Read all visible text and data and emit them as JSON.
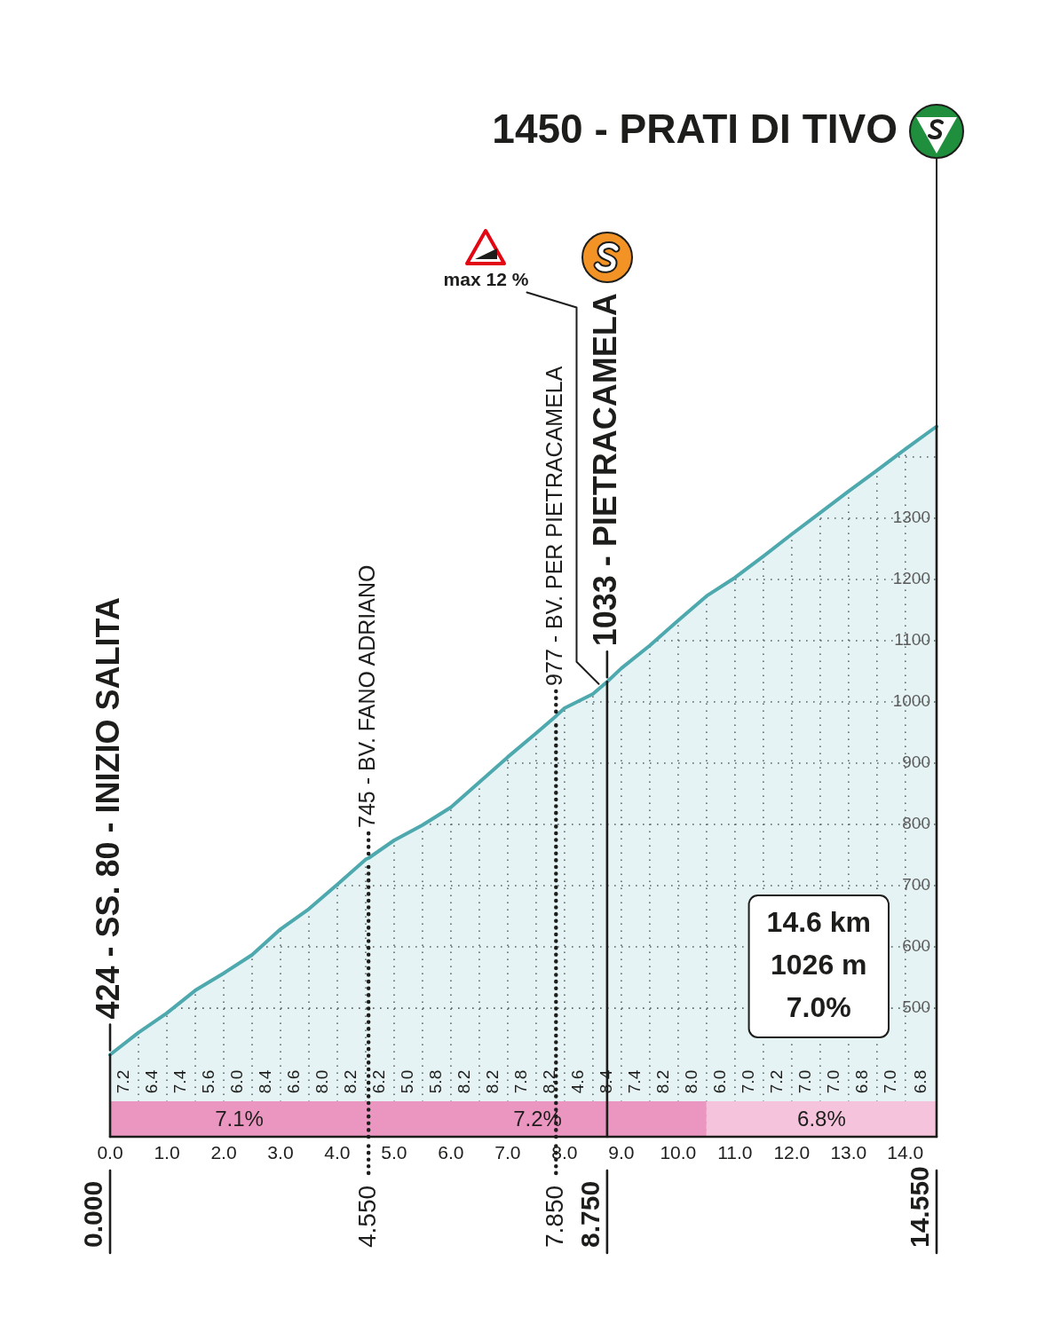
{
  "chart_data": {
    "type": "area",
    "title": "1450 - PRATI DI TIVO",
    "x": [
      0,
      0.5,
      1,
      1.5,
      2,
      2.5,
      3,
      3.5,
      4,
      4.5,
      4.55,
      5,
      5.5,
      6,
      6.5,
      7,
      7.5,
      7.85,
      8,
      8.5,
      8.75,
      9,
      9.5,
      10,
      10.5,
      11,
      11.5,
      12,
      12.5,
      13,
      13.5,
      14,
      14.55
    ],
    "series": [
      {
        "color": "#4da9ae",
        "values": [
          424,
          460,
          492,
          529,
          557,
          587,
          629,
          662,
          702,
          743,
          745,
          774,
          799,
          828,
          869,
          910,
          949,
          977,
          990,
          1013,
          1033,
          1055,
          1092,
          1133,
          1173,
          1203,
          1238,
          1274,
          1309,
          1344,
          1378,
          1413,
          1450
        ]
      }
    ],
    "xlim": [
      0,
      14.55
    ],
    "xticks": [
      {
        "value": 0,
        "label": "0.0"
      },
      {
        "value": 0.5,
        "label": null
      },
      {
        "value": 1,
        "label": "1.0"
      },
      {
        "value": 1.5,
        "label": null
      },
      {
        "value": 2,
        "label": "2.0"
      },
      {
        "value": 2.5,
        "label": null
      },
      {
        "value": 3,
        "label": "3.0"
      },
      {
        "value": 3.5,
        "label": null
      },
      {
        "value": 4,
        "label": "4.0"
      },
      {
        "value": 4.5,
        "label": null
      },
      {
        "value": 5,
        "label": "5.0"
      },
      {
        "value": 5.5,
        "label": null
      },
      {
        "value": 6,
        "label": "6.0"
      },
      {
        "value": 6.5,
        "label": null
      },
      {
        "value": 7,
        "label": "7.0"
      },
      {
        "value": 7.5,
        "label": null
      },
      {
        "value": 8,
        "label": "8.0"
      },
      {
        "value": 8.5,
        "label": null
      },
      {
        "value": 9,
        "label": "9.0"
      },
      {
        "value": 9.5,
        "label": null
      },
      {
        "value": 10,
        "label": "10.0"
      },
      {
        "value": 10.5,
        "label": null
      },
      {
        "value": 11,
        "label": "11.0"
      },
      {
        "value": 11.5,
        "label": null
      },
      {
        "value": 12,
        "label": "12.0"
      },
      {
        "value": 12.5,
        "label": null
      },
      {
        "value": 13,
        "label": "13.0"
      },
      {
        "value": 13.5,
        "label": null
      },
      {
        "value": 14,
        "label": "14.0"
      }
    ],
    "ylim": [
      290,
      1450
    ],
    "yticks": [
      500,
      600,
      700,
      800,
      900,
      1000,
      1100,
      1200,
      1300,
      {
        "value": 1400,
        "label": null
      }
    ],
    "grid": true,
    "legend": false,
    "marker": "none",
    "bands": [
      {
        "axis": "x",
        "from": 0,
        "to": 4.55,
        "label": "7.1%",
        "color": "#eb96c0"
      },
      {
        "axis": "x",
        "from": 4.55,
        "to": 10.5,
        "label": "7.2%",
        "color": "#eb96c0"
      },
      {
        "axis": "x",
        "from": 10.5,
        "to": 14.55,
        "label": "6.8%",
        "color": "#f5c4dc"
      }
    ],
    "ref_lines": [
      {
        "axis": "x",
        "value": 0,
        "label": "0.000"
      },
      {
        "axis": "x",
        "value": 4.55,
        "label": "4.550",
        "line_style": "dotted"
      },
      {
        "axis": "x",
        "value": 7.85,
        "label": "7.850",
        "line_style": "dotted"
      },
      {
        "axis": "x",
        "value": 8.75,
        "label": "8.750"
      },
      {
        "axis": "x",
        "value": 14.55,
        "label": "14.550"
      }
    ],
    "annotations": [
      {
        "text": "424 - SS. 80 - INIZIO SALITA",
        "x": 0,
        "y": 424
      },
      {
        "text": "745 - BV. FANO ADRIANO",
        "x": 4.55,
        "y": 745
      },
      {
        "text": "977 - BV. PER PIETRACAMELA",
        "x": 7.85,
        "y": 977
      },
      {
        "text": "1033 - PIETRACAMELA",
        "x": 8.75,
        "y": 1033
      },
      {
        "text": "max 12 %",
        "x": 8.65,
        "y": 1025
      },
      "7.2",
      "6.4",
      "7.4",
      "5.6",
      "6.0",
      "8.4",
      "6.6",
      "8.0",
      "8.2",
      "6.2",
      "5.0",
      "5.8",
      "8.2",
      "8.2",
      "7.8",
      "8.2",
      "4.6",
      "8.4",
      "7.4",
      "8.2",
      "8.0",
      "6.0",
      "7.0",
      "7.2",
      "7.0",
      "7.0",
      "6.8",
      "7.0",
      "6.8",
      "14.6 km",
      "1026 m",
      "7.0%"
    ]
  }
}
